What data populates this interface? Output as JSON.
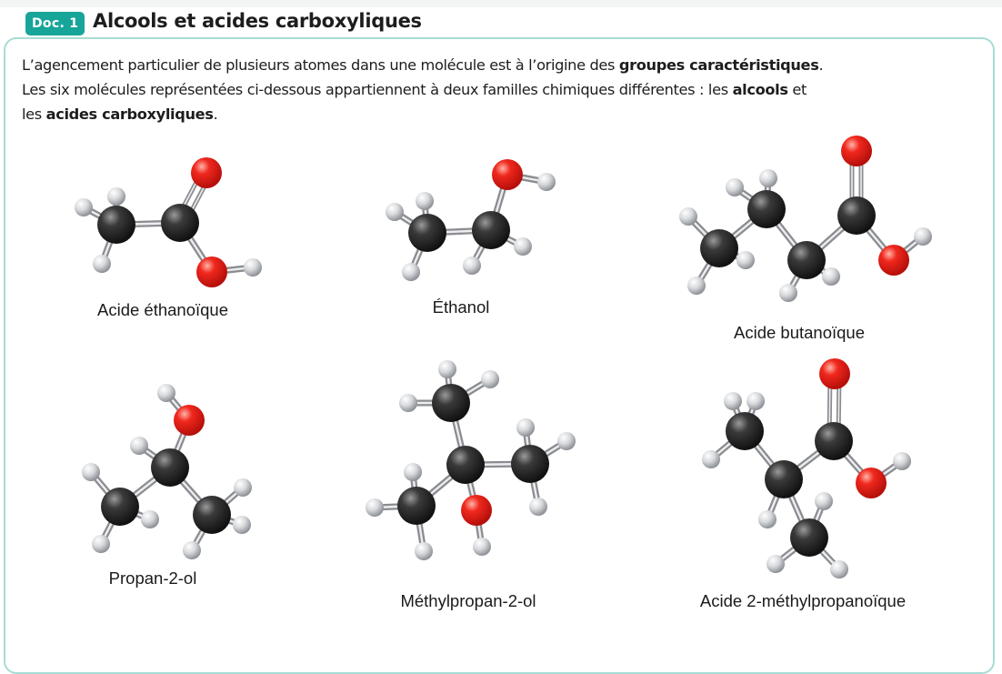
{
  "doc": {
    "badge": "Doc. 1",
    "title": "Alcools et acides carboxyliques"
  },
  "intro": {
    "l1_a": "L’agencement particulier de plusieurs atomes dans une molécule est à l’origine des ",
    "l1_b": "groupes caractéristiques",
    "l1_c": ".",
    "l2_a": "Les  six molécules représentées ci-dessous appartiennent à deux familles chimiques différentes : les ",
    "l2_b": "alcools",
    "l2_c": " et",
    "l3_a": "les ",
    "l3_b": "acides carboxyliques",
    "l3_c": "."
  },
  "molecules": [
    {
      "name": "Acide éthanoïque"
    },
    {
      "name": "Éthanol"
    },
    {
      "name": "Acide butanoïque"
    },
    {
      "name": "Propan-2-ol"
    },
    {
      "name": "Méthylpropan-2-ol"
    },
    {
      "name": "Acide 2-méthylpropanoïque"
    }
  ],
  "colors": {
    "accent": "#17a59a",
    "frame": "#a7dcd4",
    "carbon": "#2b2b2b",
    "oxygen": "#e8221a",
    "hydrogen": "#d9dbdd"
  }
}
